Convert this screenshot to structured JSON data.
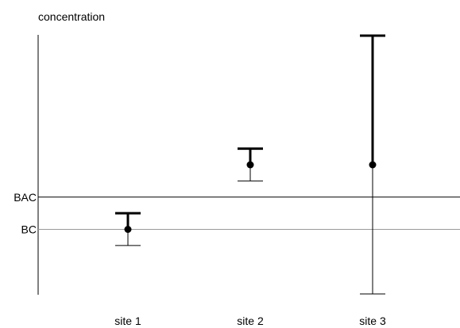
{
  "chart_data": {
    "type": "errorbar",
    "ylabel": "concentration",
    "categories": [
      "site 1",
      "site 2",
      "site 3"
    ],
    "points": [
      {
        "name": "site 1",
        "mean": 0.0,
        "lower": -0.5,
        "upper": 0.5
      },
      {
        "name": "site 2",
        "mean": 2.0,
        "lower": 1.5,
        "upper": 2.5
      },
      {
        "name": "site 3",
        "mean": 2.0,
        "lower": -2.0,
        "upper": 6.0
      }
    ],
    "reference_lines": [
      {
        "label": "BAC",
        "value": 1.0,
        "color": "#000000"
      },
      {
        "label": "BC",
        "value": 0.0,
        "color": "#999999"
      }
    ],
    "ylim": [
      -2.0,
      6.0
    ],
    "grid": false,
    "y_ticks_shown": false,
    "legend": "none",
    "colors": {
      "axis": "#000000",
      "bars": "#000000",
      "bc_line": "#999999"
    }
  }
}
